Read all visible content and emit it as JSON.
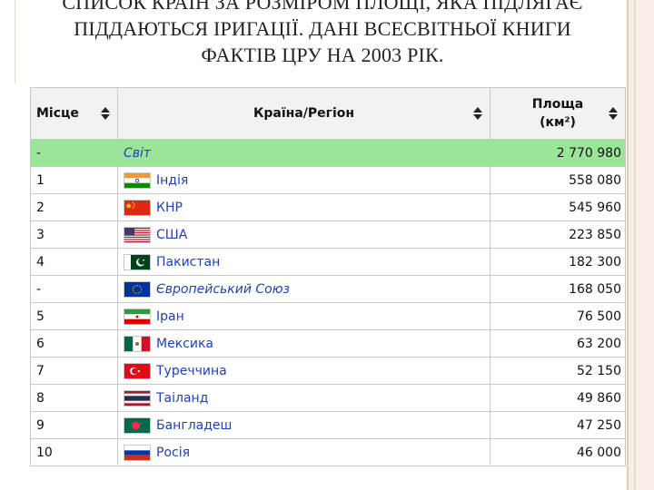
{
  "title": {
    "line1": "СПИСОК КРАЇН ЗА РОЗМІРОМ ПЛОЩІ, ЯКА ПІДЛЯГАЄ",
    "line2": "ПІДДАЮТЬСЯ ІРИГАЦІЇ. ДАНІ ВСЕСВІТНЬОЇ КНИГИ",
    "line3": "ФАКТІВ ЦРУ НА 2003 РІК."
  },
  "table": {
    "headers": {
      "rank": "Місце",
      "country": "Країна/Регіон",
      "area_line1": "Площа",
      "area_line2": "(км²)"
    },
    "rows": [
      {
        "rank": "-",
        "flag": "none",
        "country": "Світ",
        "area": "2 770 980"
      },
      {
        "rank": "1",
        "flag": "india-flag-icon",
        "country": "Індія",
        "area": "558 080"
      },
      {
        "rank": "2",
        "flag": "china-flag-icon",
        "country": "КНР",
        "area": "545 960"
      },
      {
        "rank": "3",
        "flag": "usa-flag-icon",
        "country": "США",
        "area": "223 850"
      },
      {
        "rank": "4",
        "flag": "pakistan-flag-icon",
        "country": "Пакистан",
        "area": "182 300"
      },
      {
        "rank": "-",
        "flag": "eu-flag-icon",
        "country": "Європейський Союз",
        "area": "168 050"
      },
      {
        "rank": "5",
        "flag": "iran-flag-icon",
        "country": "Іран",
        "area": "76 500"
      },
      {
        "rank": "6",
        "flag": "mexico-flag-icon",
        "country": "Мексика",
        "area": "63 200"
      },
      {
        "rank": "7",
        "flag": "turkey-flag-icon",
        "country": "Туреччина",
        "area": "52 150"
      },
      {
        "rank": "8",
        "flag": "thailand-flag-icon",
        "country": "Таіланд",
        "area": "49 860"
      },
      {
        "rank": "9",
        "flag": "bangladesh-flag-icon",
        "country": "Бангладеш",
        "area": "47 250"
      },
      {
        "rank": "10",
        "flag": "russia-flag-icon",
        "country": "Росія",
        "area": "46 000"
      }
    ]
  },
  "colors": {
    "world_row": "#9ae59a",
    "header_bg": "#f2f2f2",
    "link": "#1f3fbf"
  }
}
